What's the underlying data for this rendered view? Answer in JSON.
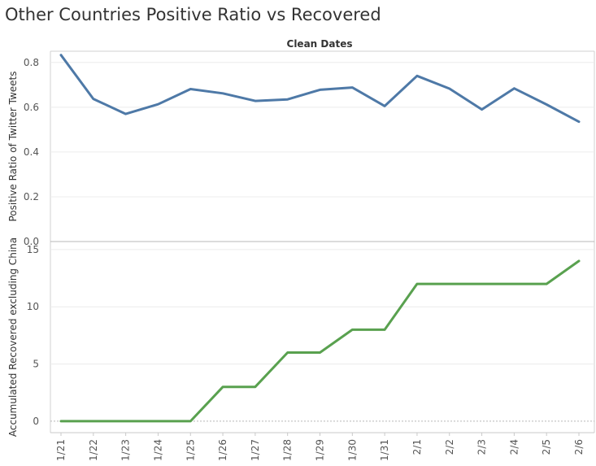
{
  "title": "Other Countries Positive Ratio vs Recovered",
  "chart_data": {
    "type": "line",
    "column_header": "Clean Dates",
    "categories": [
      "1/21",
      "1/22",
      "1/23",
      "1/24",
      "1/25",
      "1/26",
      "1/27",
      "1/28",
      "1/29",
      "1/30",
      "1/31",
      "2/1",
      "2/2",
      "2/3",
      "2/4",
      "2/5",
      "2/6"
    ],
    "panels": [
      {
        "ylabel": "Positive Ratio of Twitter Tweets",
        "ylim": [
          0,
          0.85
        ],
        "yticks": [
          0.0,
          0.2,
          0.4,
          0.6,
          0.8
        ],
        "ytick_labels": [
          "0.0",
          "0.2",
          "0.4",
          "0.6",
          "0.8"
        ],
        "color": "#4e79a7",
        "values": [
          0.833,
          0.637,
          0.57,
          0.613,
          0.681,
          0.662,
          0.628,
          0.635,
          0.678,
          0.688,
          0.605,
          0.74,
          0.683,
          0.59,
          0.684,
          0.612,
          0.535
        ]
      },
      {
        "ylabel": "Accumulated Recovered excluding China",
        "ylim": [
          -1,
          15.7
        ],
        "yticks": [
          0,
          5,
          10,
          15
        ],
        "ytick_labels": [
          "0",
          "5",
          "10",
          "15"
        ],
        "color": "#59a14f",
        "values": [
          0,
          0,
          0,
          0,
          0,
          3,
          3,
          6,
          6,
          8,
          8,
          12,
          12,
          12,
          12,
          12,
          14
        ]
      }
    ],
    "grid": true,
    "legend": "none"
  }
}
